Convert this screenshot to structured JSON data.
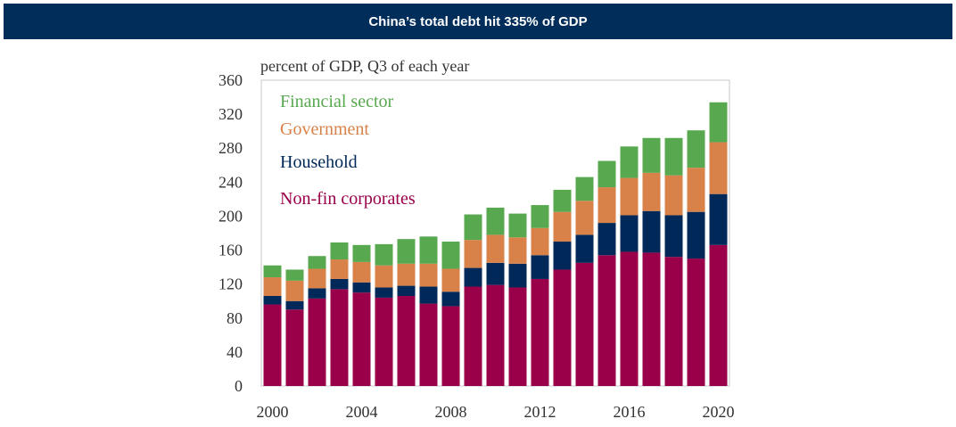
{
  "header": {
    "title": "China’s total debt hit 335% of GDP"
  },
  "chart_data": {
    "type": "bar",
    "stacked": true,
    "title": "",
    "unit_label": "percent of GDP, Q3  of each year",
    "xlabel": "",
    "ylabel": "",
    "ylim": [
      0,
      360
    ],
    "yticks": [
      0,
      40,
      80,
      120,
      160,
      200,
      240,
      280,
      320,
      360
    ],
    "categories": [
      "2000",
      "2001",
      "2002",
      "2003",
      "2004",
      "2005",
      "2006",
      "2007",
      "2008",
      "2009",
      "2010",
      "2011",
      "2012",
      "2013",
      "2014",
      "2015",
      "2016",
      "2017",
      "2018",
      "2019",
      "2020"
    ],
    "xtick_labels": [
      "2000",
      "2004",
      "2008",
      "2012",
      "2016",
      "2020"
    ],
    "legend_position": "top-left",
    "grid": false,
    "series": [
      {
        "name": "Non-fin corporates",
        "color": "#990049",
        "values": [
          96,
          90,
          103,
          114,
          110,
          104,
          106,
          97,
          94,
          117,
          119,
          116,
          126,
          137,
          145,
          154,
          158,
          157,
          152,
          150,
          166
        ]
      },
      {
        "name": "Household",
        "color": "#002858",
        "values": [
          10,
          10,
          12,
          12,
          12,
          12,
          12,
          20,
          17,
          22,
          26,
          28,
          28,
          33,
          33,
          38,
          43,
          49,
          49,
          55,
          60
        ]
      },
      {
        "name": "Government",
        "color": "#d8824a",
        "values": [
          22,
          24,
          23,
          23,
          24,
          26,
          26,
          27,
          27,
          33,
          33,
          31,
          32,
          35,
          40,
          42,
          44,
          45,
          47,
          52,
          61
        ]
      },
      {
        "name": "Financial sector",
        "color": "#58a84f",
        "values": [
          14,
          13,
          15,
          20,
          20,
          25,
          29,
          32,
          32,
          30,
          32,
          28,
          27,
          26,
          28,
          31,
          37,
          41,
          44,
          44,
          47
        ]
      }
    ]
  }
}
